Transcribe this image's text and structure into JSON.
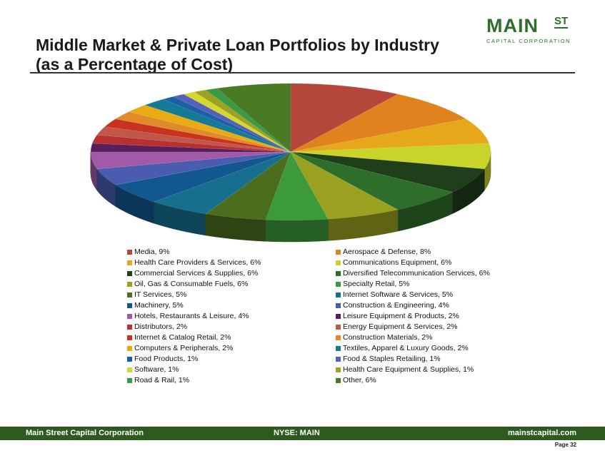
{
  "header": {
    "title_line1": "Middle Market & Private Loan Portfolios by Industry",
    "title_line2": "(as a Percentage of Cost)"
  },
  "logo": {
    "main": "MAIN",
    "superscript": "ST",
    "subtitle": "CAPITAL CORPORATION"
  },
  "footer": {
    "company": "Main Street Capital Corporation",
    "ticker": "NYSE: MAIN",
    "website": "mainstcapital.com",
    "page": "Page  32"
  },
  "chart_data": {
    "type": "pie",
    "style": "3d",
    "legend_position": "bottom",
    "slices": [
      {
        "name": "Media",
        "value": 9,
        "label": "Media, 9%",
        "color": "#b5473a"
      },
      {
        "name": "Aerospace & Defense",
        "value": 8,
        "label": "Aerospace & Defense, 8%",
        "color": "#e0821e"
      },
      {
        "name": "Health Care Providers & Services",
        "value": 6,
        "label": "Health Care Providers & Services, 6%",
        "color": "#e6a81a"
      },
      {
        "name": "Communications Equipment",
        "value": 6,
        "label": "Communications Equipment, 6%",
        "color": "#c9d42a"
      },
      {
        "name": "Commercial Services & Supplies",
        "value": 6,
        "label": "Commercial Services & Supplies, 6%",
        "color": "#1e3f1a"
      },
      {
        "name": "Diversified Telecommunication Services",
        "value": 6,
        "label": "Diversified Telecommunication Services, 6%",
        "color": "#2e6e2b"
      },
      {
        "name": "Oil, Gas & Consumable Fuels",
        "value": 6,
        "label": "Oil, Gas & Consumable Fuels, 6%",
        "color": "#9aa01f"
      },
      {
        "name": "Specialty Retail",
        "value": 5,
        "label": "Specialty Retail, 5%",
        "color": "#3d9a3a"
      },
      {
        "name": "IT Services",
        "value": 5,
        "label": "IT Services, 5%",
        "color": "#4a6e1e"
      },
      {
        "name": "Internet Software & Services",
        "value": 5,
        "label": "Internet Software & Services, 5%",
        "color": "#166f8f"
      },
      {
        "name": "Machinery",
        "value": 5,
        "label": "Machinery, 5%",
        "color": "#12578f"
      },
      {
        "name": "Construction & Engineering",
        "value": 4,
        "label": "Construction & Engineering, 4%",
        "color": "#4a5cb0"
      },
      {
        "name": "Hotels, Restaurants & Leisure",
        "value": 4,
        "label": "Hotels, Restaurants & Leisure, 4%",
        "color": "#a25aa8"
      },
      {
        "name": "Leisure Equipment & Products",
        "value": 2,
        "label": "Leisure Equipment & Products, 2%",
        "color": "#5a1e5e"
      },
      {
        "name": "Distributors",
        "value": 2,
        "label": "Distributors, 2%",
        "color": "#b83030"
      },
      {
        "name": "Energy Equipment & Services",
        "value": 2,
        "label": "Energy Equipment & Services, 2%",
        "color": "#c0584a"
      },
      {
        "name": "Internet & Catalog Retail",
        "value": 2,
        "label": "Internet & Catalog Retail, 2%",
        "color": "#c8321e"
      },
      {
        "name": "Construction Materials",
        "value": 2,
        "label": "Construction Materials, 2%",
        "color": "#e08a2a"
      },
      {
        "name": "Computers & Peripherals",
        "value": 2,
        "label": "Computers & Peripherals, 2%",
        "color": "#e8ac12"
      },
      {
        "name": "Textiles, Apparel & Luxury Goods",
        "value": 2,
        "label": "Textiles, Apparel & Luxury Goods, 2%",
        "color": "#157a96"
      },
      {
        "name": "Food Products",
        "value": 1,
        "label": "Food Products, 1%",
        "color": "#1a5fa8"
      },
      {
        "name": "Food & Staples Retailing",
        "value": 1,
        "label": "Food & Staples Retailing, 1%",
        "color": "#5560b8"
      },
      {
        "name": "Software",
        "value": 1,
        "label": "Software, 1%",
        "color": "#d2d830"
      },
      {
        "name": "Health Care Equipment & Supplies",
        "value": 1,
        "label": "Health Care Equipment & Supplies, 1%",
        "color": "#a0a022"
      },
      {
        "name": "Road & Rail",
        "value": 1,
        "label": "Road & Rail, 1%",
        "color": "#3a9a48"
      },
      {
        "name": "Other",
        "value": 6,
        "label": "Other, 6%",
        "color": "#4a7a24"
      }
    ]
  }
}
